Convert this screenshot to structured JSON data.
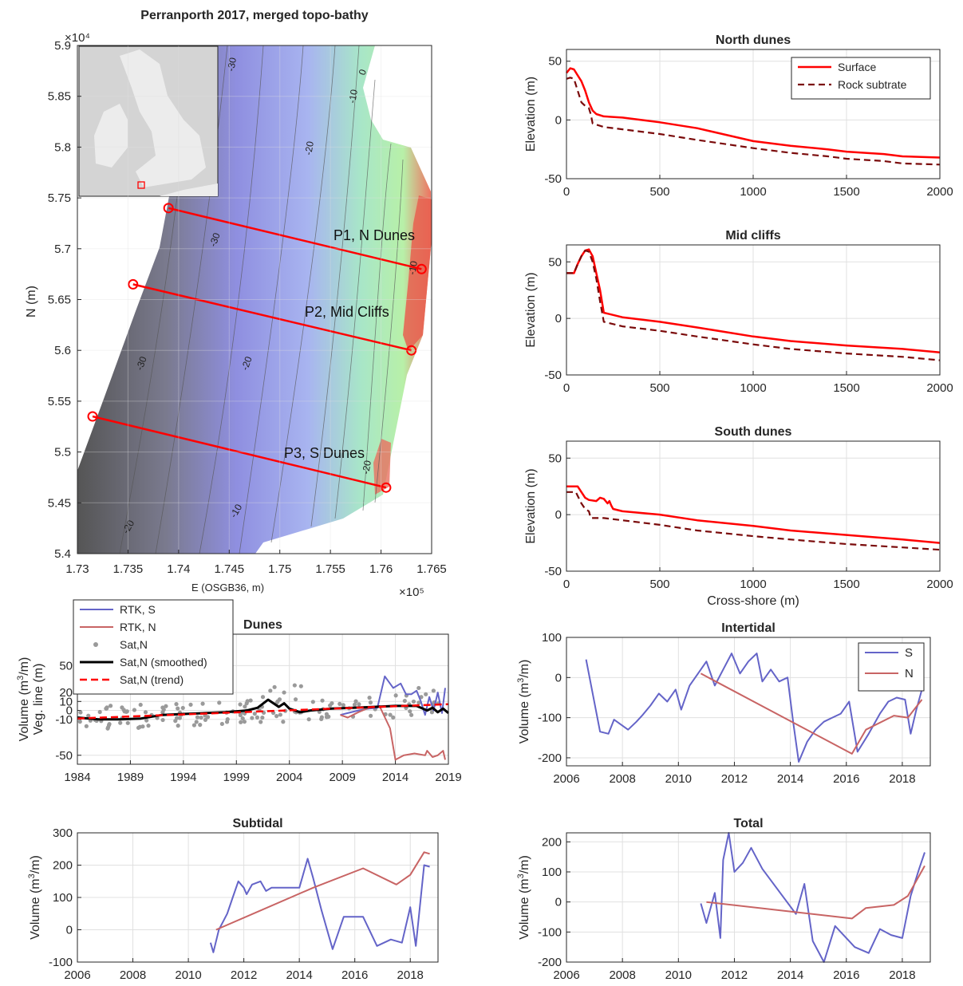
{
  "colors": {
    "surface": "#ff0000",
    "rock": "#7a0a0a",
    "rtk_s": "#6464c8",
    "rtk_n": "#c86464",
    "sat": "#9a9a9a",
    "smoothed": "#000000",
    "trend": "#ff0000",
    "transect": "#ff0000"
  },
  "map": {
    "title": "Perranporth 2017, merged topo-bathy",
    "xlabel": "E (OSGB36, m)",
    "ylabel": "N (m)",
    "x_exponent": "×10⁵",
    "y_exponent": "×10⁴",
    "xticks": [
      "1.73",
      "1.735",
      "1.74",
      "1.745",
      "1.75",
      "1.755",
      "1.76",
      "1.765"
    ],
    "yticks": [
      "5.9",
      "5.85",
      "5.8",
      "5.75",
      "5.7",
      "5.65",
      "5.6",
      "5.55",
      "5.5",
      "5.45",
      "5.4"
    ],
    "transect_labels": [
      "P1, N Dunes",
      "P2, Mid Cliffs",
      "P3, S Dunes"
    ],
    "contour_labels": [
      "-30",
      "-10",
      "0",
      "-20",
      "-30",
      "-30",
      "-20",
      "-20",
      "-10",
      "-10",
      "-20",
      "-30",
      "-10",
      "-20",
      "-20"
    ]
  },
  "chart_data": [
    {
      "type": "map",
      "title": "Perranporth 2017, merged topo-bathy",
      "xlabel": "E (OSGB36, m)",
      "ylabel": "N (m)",
      "xlim": [
        173000,
        176500
      ],
      "ylim": [
        54000,
        59000
      ],
      "transects": [
        {
          "name": "P1, N Dunes",
          "start": [
            173900,
            57400
          ],
          "end": [
            176400,
            56800
          ]
        },
        {
          "name": "P2, Mid Cliffs",
          "start": [
            173550,
            56650
          ],
          "end": [
            176300,
            56000
          ]
        },
        {
          "name": "P3, S Dunes",
          "start": [
            173150,
            55350
          ],
          "end": [
            176050,
            54650
          ]
        }
      ]
    },
    {
      "type": "line",
      "title": "North dunes",
      "ylabel": "Elevation (m)",
      "xlabel": "",
      "xlim": [
        0,
        2000
      ],
      "ylim": [
        -50,
        60
      ],
      "xticks": [
        "0",
        "500",
        "1000",
        "1500",
        "2000"
      ],
      "yticks": [
        "50",
        "0",
        "-50"
      ],
      "legend": [
        "Surface",
        "Rock subtrate"
      ],
      "series": [
        {
          "name": "Surface",
          "x": [
            0,
            20,
            40,
            60,
            80,
            100,
            120,
            140,
            160,
            200,
            300,
            500,
            700,
            1000,
            1200,
            1400,
            1500,
            1700,
            1800,
            2000
          ],
          "y": [
            40,
            44,
            43,
            38,
            33,
            25,
            15,
            8,
            5,
            3,
            2,
            -2,
            -7,
            -18,
            -22,
            -25,
            -27,
            -29,
            -31,
            -32
          ]
        },
        {
          "name": "Rock subtrate",
          "x": [
            0,
            20,
            40,
            60,
            80,
            100,
            120,
            130,
            140,
            200,
            300,
            500,
            700,
            1000,
            1200,
            1400,
            1500,
            1700,
            1800,
            2000
          ],
          "y": [
            35,
            36,
            35,
            25,
            15,
            12,
            10,
            5,
            -3,
            -6,
            -8,
            -12,
            -17,
            -24,
            -28,
            -31,
            -33,
            -35,
            -37,
            -38
          ]
        }
      ]
    },
    {
      "type": "line",
      "title": "Mid cliffs",
      "ylabel": "Elevation (m)",
      "xlabel": "",
      "xlim": [
        0,
        2000
      ],
      "ylim": [
        -50,
        65
      ],
      "xticks": [
        "0",
        "500",
        "1000",
        "1500",
        "2000"
      ],
      "yticks": [
        "50",
        "0",
        "-50"
      ],
      "series": [
        {
          "name": "Surface",
          "x": [
            0,
            40,
            60,
            80,
            100,
            120,
            140,
            160,
            180,
            200,
            300,
            500,
            700,
            1000,
            1200,
            1500,
            1800,
            2000
          ],
          "y": [
            40,
            40,
            48,
            55,
            60,
            61,
            55,
            40,
            25,
            5,
            1,
            -3,
            -8,
            -16,
            -20,
            -24,
            -27,
            -30
          ]
        },
        {
          "name": "Rock subtrate",
          "x": [
            0,
            40,
            60,
            80,
            100,
            120,
            140,
            160,
            180,
            200,
            300,
            500,
            700,
            1000,
            1200,
            1500,
            1800,
            2000
          ],
          "y": [
            40,
            40,
            48,
            55,
            60,
            59,
            50,
            35,
            15,
            -3,
            -7,
            -11,
            -16,
            -23,
            -27,
            -31,
            -34,
            -37
          ]
        }
      ]
    },
    {
      "type": "line",
      "title": "South dunes",
      "ylabel": "Elevation (m)",
      "xlabel": "Cross-shore (m)",
      "xlim": [
        0,
        2000
      ],
      "ylim": [
        -50,
        65
      ],
      "xticks": [
        "0",
        "500",
        "1000",
        "1500",
        "2000"
      ],
      "yticks": [
        "50",
        "0",
        "-50"
      ],
      "series": [
        {
          "name": "Surface",
          "x": [
            0,
            60,
            80,
            100,
            120,
            160,
            180,
            200,
            220,
            230,
            240,
            250,
            300,
            500,
            700,
            1000,
            1200,
            1500,
            1800,
            2000
          ],
          "y": [
            25,
            25,
            20,
            15,
            13,
            12,
            15,
            14,
            10,
            12,
            8,
            5,
            3,
            0,
            -5,
            -10,
            -14,
            -18,
            -22,
            -25
          ]
        },
        {
          "name": "Rock subtrate",
          "x": [
            0,
            50,
            80,
            100,
            120,
            130,
            200,
            300,
            500,
            700,
            1000,
            1200,
            1500,
            1800,
            2000
          ],
          "y": [
            20,
            20,
            10,
            5,
            3,
            -3,
            -3,
            -5,
            -9,
            -14,
            -19,
            -22,
            -26,
            -29,
            -31
          ]
        }
      ]
    },
    {
      "type": "line",
      "title": "Dunes",
      "ylabel": "Volume (m³/m)\nVeg. line (m)",
      "xlabel": "",
      "xlim": [
        1984,
        2019
      ],
      "ylim": [
        -60,
        85
      ],
      "xticks": [
        "1984",
        "1989",
        "1994",
        "1999",
        "2004",
        "2009",
        "2014",
        "2019"
      ],
      "yticks": [
        "50",
        "20",
        "10",
        "0",
        "-10",
        "-50"
      ],
      "legend": [
        "RTK, S",
        "RTK, N",
        "Sat,N",
        "Sat,N (smoothed)",
        "Sat,N (trend)"
      ],
      "series": [
        {
          "name": "RTK, S",
          "x": [
            2008.8,
            2009.5,
            2010.5,
            2011.5,
            2012.3,
            2013,
            2013.8,
            2014.5,
            2015,
            2015.5,
            2016,
            2016.4,
            2016.8,
            2017.2,
            2017.6,
            2018,
            2018.4,
            2018.7
          ],
          "y": [
            -5,
            -3,
            0,
            2,
            3,
            38,
            25,
            30,
            18,
            18,
            22,
            10,
            -5,
            15,
            0,
            20,
            -3,
            25
          ]
        },
        {
          "name": "RTK, N",
          "x": [
            2008.8,
            2009.5,
            2010.5,
            2011.5,
            2012.5,
            2013.5,
            2014,
            2014.8,
            2015.8,
            2016.8,
            2017,
            2017.5,
            2018,
            2018.5,
            2018.7
          ],
          "y": [
            -5,
            -8,
            -2,
            3,
            5,
            -20,
            -55,
            -50,
            -48,
            -50,
            -45,
            -52,
            -50,
            -45,
            -55
          ]
        },
        {
          "name": "Sat,N (smoothed)",
          "x": [
            1984,
            1986,
            1988,
            1990,
            1992,
            1994,
            1996,
            1998,
            2000,
            2001,
            2002,
            2003,
            2003.5,
            2004,
            2005,
            2006,
            2008,
            2010,
            2012,
            2014,
            2016,
            2017,
            2017.5,
            2018,
            2018.5,
            2019
          ],
          "y": [
            -8,
            -10,
            -10,
            -9,
            -5,
            -4,
            -3,
            -2,
            0,
            3,
            12,
            4,
            8,
            2,
            -2,
            0,
            2,
            3,
            4,
            5,
            5,
            0,
            3,
            -2,
            2,
            -3
          ]
        },
        {
          "name": "Sat,N (trend)",
          "x": [
            1984,
            2019
          ],
          "y": [
            -9,
            7
          ]
        }
      ]
    },
    {
      "type": "line",
      "title": "Intertidal",
      "ylabel": "Volume (m³/m)",
      "xlabel": "",
      "xlim": [
        2006,
        2019
      ],
      "ylim": [
        -220,
        100
      ],
      "xticks": [
        "2006",
        "2008",
        "2010",
        "2012",
        "2014",
        "2016",
        "2018"
      ],
      "yticks": [
        "100",
        "0",
        "-100",
        "-200"
      ],
      "legend": [
        "S",
        "N"
      ],
      "series": [
        {
          "name": "S",
          "x": [
            2006.7,
            2007.2,
            2007.5,
            2007.7,
            2008.2,
            2008.5,
            2008.7,
            2009,
            2009.3,
            2009.6,
            2009.9,
            2010.1,
            2010.4,
            2010.7,
            2011,
            2011.3,
            2011.6,
            2011.9,
            2012.2,
            2012.5,
            2012.8,
            2013,
            2013.3,
            2013.6,
            2013.9,
            2014.1,
            2014.3,
            2014.6,
            2014.9,
            2015.2,
            2015.5,
            2015.8,
            2016.1,
            2016.4,
            2016.8,
            2017.2,
            2017.5,
            2017.8,
            2018.1,
            2018.3,
            2018.5,
            2018.7
          ],
          "y": [
            45,
            -135,
            -140,
            -105,
            -130,
            -110,
            -95,
            -70,
            -40,
            -60,
            -30,
            -80,
            -20,
            10,
            40,
            -20,
            20,
            60,
            10,
            40,
            60,
            -10,
            20,
            -10,
            0,
            -110,
            -210,
            -160,
            -130,
            -110,
            -100,
            -90,
            -60,
            -185,
            -140,
            -90,
            -60,
            -50,
            -55,
            -140,
            -80,
            -30
          ]
        },
        {
          "name": "N",
          "x": [
            2010.8,
            2016.2,
            2016.7,
            2017.7,
            2018.2,
            2018.7
          ],
          "y": [
            10,
            -190,
            -130,
            -95,
            -100,
            -55
          ]
        }
      ]
    },
    {
      "type": "line",
      "title": "Subtidal",
      "ylabel": "Volume (m³/m)",
      "xlabel": "",
      "xlim": [
        2006,
        2019
      ],
      "ylim": [
        -100,
        300
      ],
      "xticks": [
        "2006",
        "2008",
        "2010",
        "2012",
        "2014",
        "2016",
        "2018"
      ],
      "yticks": [
        "300",
        "200",
        "100",
        "0",
        "-100"
      ],
      "series": [
        {
          "name": "RTK, S",
          "x": [
            2010.8,
            2010.9,
            2011.1,
            2011.4,
            2011.6,
            2011.8,
            2012,
            2012.1,
            2012.3,
            2012.6,
            2012.8,
            2013,
            2014,
            2014.3,
            2014.5,
            2014.8,
            2015.2,
            2015.6,
            2016.3,
            2016.8,
            2017.3,
            2017.7,
            2018,
            2018.2,
            2018.5,
            2018.7
          ],
          "y": [
            -40,
            -70,
            0,
            50,
            100,
            150,
            130,
            110,
            140,
            150,
            120,
            130,
            130,
            220,
            160,
            60,
            -60,
            40,
            40,
            -50,
            -30,
            -40,
            70,
            -50,
            200,
            195
          ]
        },
        {
          "name": "RTK, N",
          "x": [
            2011,
            2014.5,
            2016.3,
            2017.5,
            2018,
            2018.5,
            2018.7
          ],
          "y": [
            0,
            130,
            190,
            140,
            170,
            240,
            235
          ]
        }
      ]
    },
    {
      "type": "line",
      "title": "Total",
      "ylabel": "Volume (m³/m)",
      "xlabel": "",
      "xlim": [
        2006,
        2019
      ],
      "ylim": [
        -200,
        230
      ],
      "xticks": [
        "2006",
        "2008",
        "2010",
        "2012",
        "2014",
        "2016",
        "2018"
      ],
      "yticks": [
        "200",
        "100",
        "0",
        "-100",
        "-200"
      ],
      "series": [
        {
          "name": "RTK, S",
          "x": [
            2010.8,
            2011,
            2011.3,
            2011.5,
            2011.6,
            2011.8,
            2012,
            2012.3,
            2012.6,
            2013,
            2014.2,
            2014.5,
            2014.8,
            2015.2,
            2015.6,
            2016.3,
            2016.8,
            2017.2,
            2017.6,
            2018,
            2018.3,
            2018.6,
            2018.8
          ],
          "y": [
            -5,
            -70,
            30,
            -120,
            140,
            230,
            100,
            130,
            180,
            110,
            -40,
            60,
            -130,
            -200,
            -80,
            -150,
            -170,
            -90,
            -110,
            -120,
            20,
            110,
            165
          ]
        },
        {
          "name": "RTK, N",
          "x": [
            2011,
            2016.2,
            2016.7,
            2017.7,
            2018.2,
            2018.8
          ],
          "y": [
            0,
            -55,
            -20,
            -10,
            20,
            120
          ]
        }
      ]
    }
  ],
  "labels": {
    "elevation_ylabel": "Elevation (m)",
    "cross_shore_xlabel": "Cross-shore (m)",
    "volume_ylabel_1": "Volume (m",
    "volume_ylabel_sup": "3",
    "volume_ylabel_2": "/m)",
    "veg_line_ylabel": "Veg. line (m)"
  }
}
